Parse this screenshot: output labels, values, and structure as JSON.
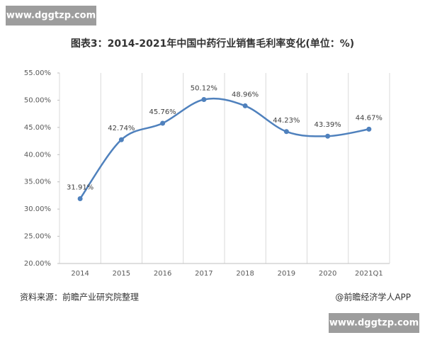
{
  "chart_data": {
    "type": "line",
    "title": "图表3：2014-2021年中国中药行业销售毛利率变化(单位：%)",
    "watermark": "www.dggtzp.com",
    "source": "资料来源：前瞻产业研究院整理",
    "credit": "@前瞻经济学人APP",
    "categories": [
      "2014",
      "2015",
      "2016",
      "2017",
      "2018",
      "2019",
      "2020",
      "2021Q1"
    ],
    "series": [
      {
        "name": "销售毛利率",
        "color": "#4f81bd",
        "values": [
          31.91,
          42.74,
          45.76,
          50.12,
          48.96,
          44.23,
          43.39,
          44.67
        ],
        "value_labels": [
          "31.91%",
          "42.74%",
          "45.76%",
          "50.12%",
          "48.96%",
          "44.23%",
          "43.39%",
          "44.67%"
        ]
      }
    ],
    "ylim": [
      20,
      55
    ],
    "yticks": [
      {
        "value": 20,
        "label": "20.00%"
      },
      {
        "value": 25,
        "label": "25.00%"
      },
      {
        "value": 30,
        "label": "30.00%"
      },
      {
        "value": 35,
        "label": "35.00%"
      },
      {
        "value": 40,
        "label": "40.00%"
      },
      {
        "value": 45,
        "label": "45.00%"
      },
      {
        "value": 50,
        "label": "50.00%"
      },
      {
        "value": 55,
        "label": "55.00%"
      }
    ],
    "grid": false,
    "smooth": true
  }
}
